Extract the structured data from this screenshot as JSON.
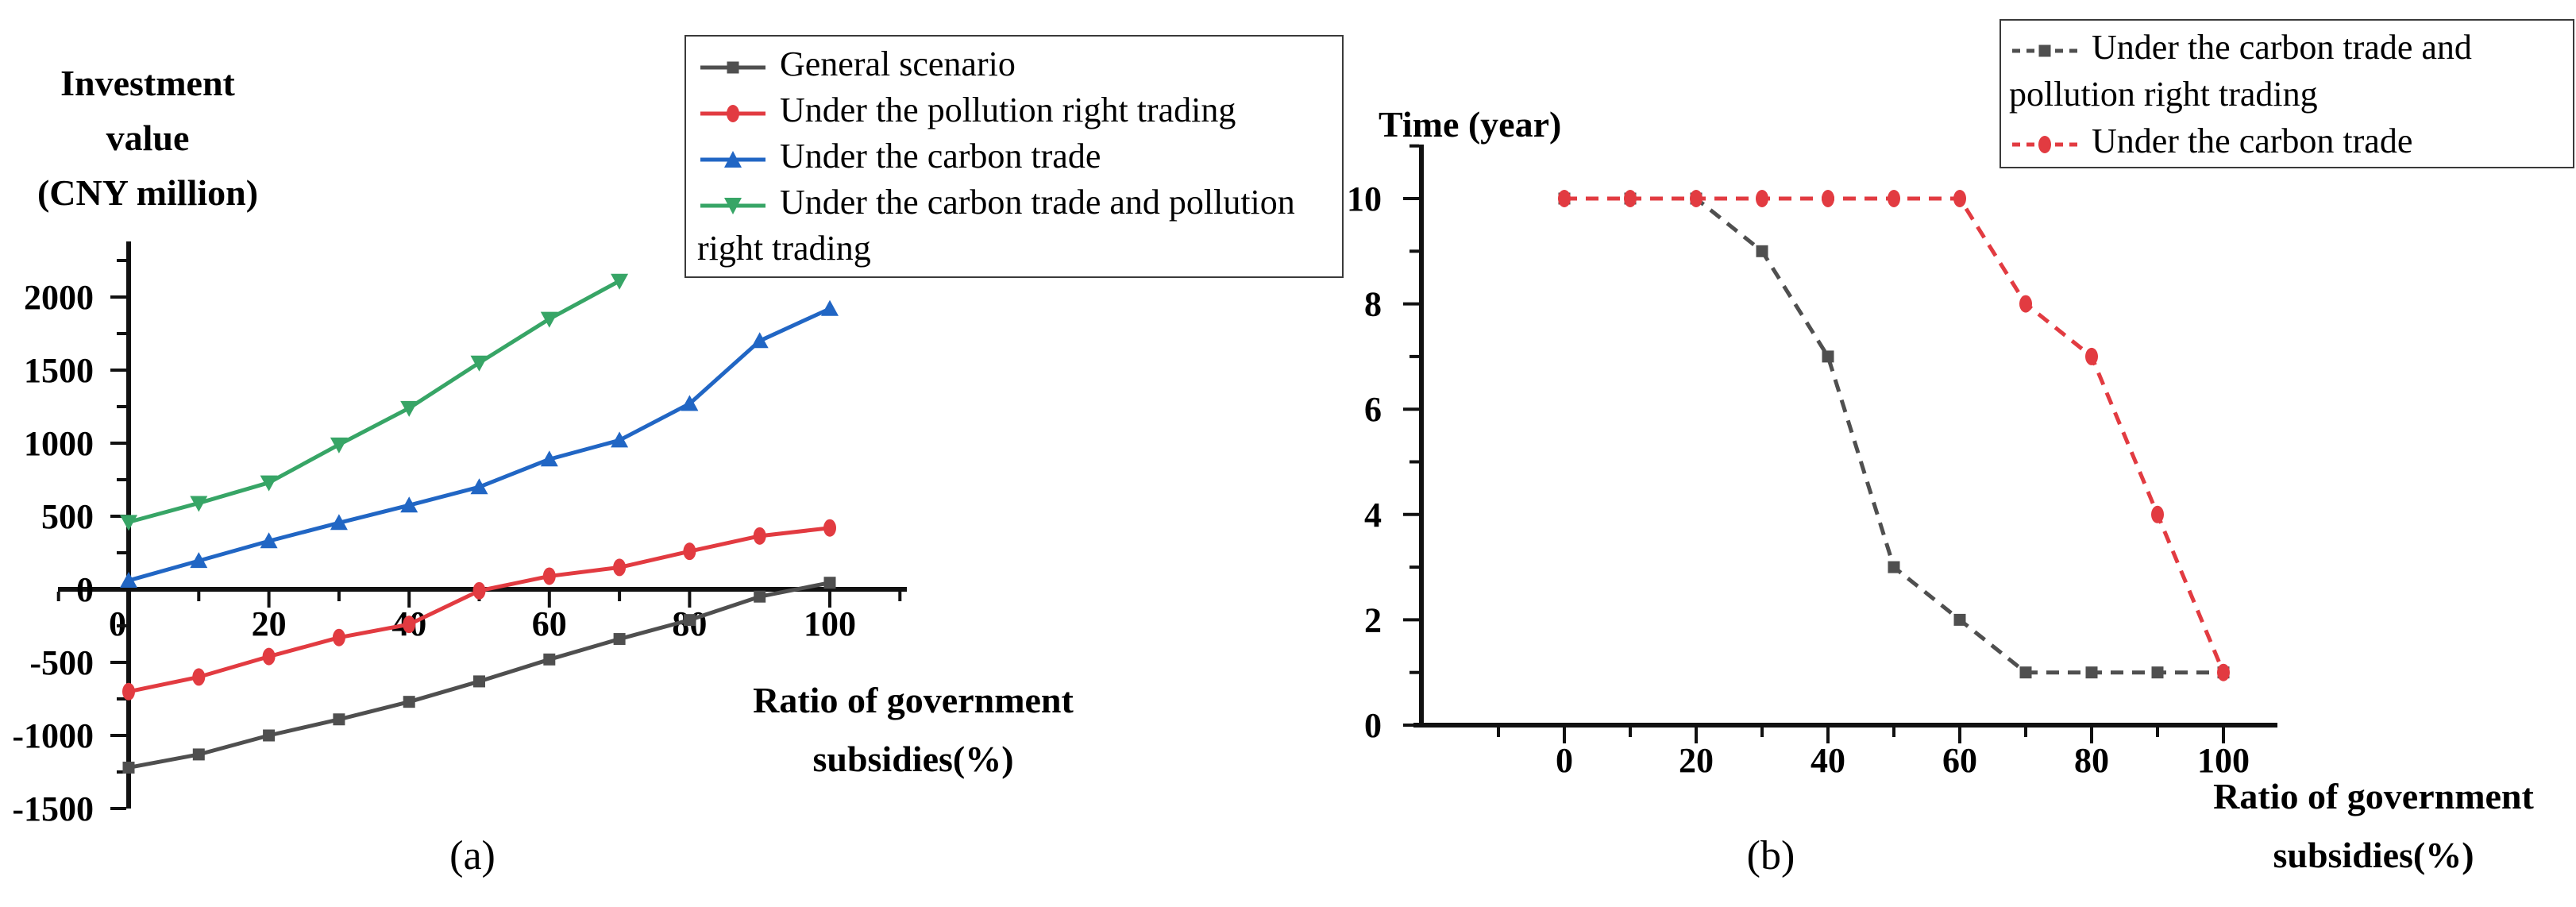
{
  "figure": {
    "background": "#ffffff"
  },
  "chart_data": [
    {
      "id": "a",
      "type": "line",
      "caption": "(a)",
      "ylabel": "Investment value (CNY million)",
      "xlabel": "Ratio of government subsidies(%)",
      "y_axis_title_lines": [
        "Investment value",
        "(CNY million)"
      ],
      "x_axis_title_lines": [
        "Ratio of government",
        "subsidies(%)"
      ],
      "x": [
        0,
        10,
        20,
        30,
        40,
        50,
        60,
        70,
        80,
        90,
        100
      ],
      "xlim": [
        -10,
        110
      ],
      "ylim": [
        -1750,
        2350
      ],
      "xticks": [
        0,
        20,
        40,
        60,
        80,
        100
      ],
      "yticks": [
        -1500,
        -1000,
        -500,
        0,
        500,
        1000,
        1500,
        2000
      ],
      "xticks_minor": [
        -10,
        10,
        30,
        50,
        70,
        90,
        110
      ],
      "yticks_minor": [
        -1250,
        -750,
        -250,
        250,
        750,
        1250,
        1750,
        2250
      ],
      "grid": false,
      "legend_position": "top-right",
      "series": [
        {
          "name": "General scenario",
          "color": "#4f4f4f",
          "marker": "square",
          "line_style": "solid",
          "x": [
            0,
            10,
            20,
            30,
            40,
            50,
            60,
            70,
            80,
            90,
            100
          ],
          "values": [
            -1220,
            -1130,
            -1000,
            -890,
            -770,
            -630,
            -480,
            -340,
            -210,
            -50,
            45
          ]
        },
        {
          "name": "Under the pollution right trading",
          "color": "#e23b41",
          "marker": "circle",
          "line_style": "solid",
          "x": [
            0,
            10,
            20,
            30,
            40,
            50,
            60,
            70,
            80,
            90,
            100
          ],
          "values": [
            -700,
            -600,
            -460,
            -330,
            -240,
            -10,
            90,
            150,
            260,
            365,
            420
          ]
        },
        {
          "name": "Under the carbon trade",
          "color": "#2166c4",
          "marker": "triangle-up",
          "line_style": "solid",
          "x": [
            0,
            10,
            20,
            30,
            40,
            50,
            60,
            70,
            80,
            90,
            100
          ],
          "values": [
            60,
            195,
            330,
            455,
            575,
            700,
            890,
            1020,
            1270,
            1700,
            1920
          ]
        },
        {
          "name": "Under the carbon trade and pollution right trading",
          "color": "#37a566",
          "marker": "triangle-down",
          "line_style": "solid",
          "x": [
            0,
            10,
            20,
            30,
            40,
            50,
            60,
            70
          ],
          "values": [
            460,
            590,
            730,
            990,
            1240,
            1550,
            1850,
            2110
          ]
        }
      ]
    },
    {
      "id": "b",
      "type": "line",
      "caption": "(b)",
      "ylabel": "Time (year)",
      "xlabel": "Ratio of government subsidies(%)",
      "y_axis_title": "Time (year)",
      "x_axis_title_lines": [
        "Ratio of government",
        "subsidies(%)"
      ],
      "x": [
        0,
        10,
        20,
        30,
        40,
        50,
        60,
        70,
        80,
        90,
        100
      ],
      "xlim": [
        -25,
        110
      ],
      "ylim": [
        0,
        11
      ],
      "xticks": [
        0,
        20,
        40,
        60,
        80,
        100
      ],
      "yticks": [
        0,
        2,
        4,
        6,
        8,
        10
      ],
      "xticks_minor": [
        -10,
        10,
        30,
        50,
        70,
        90
      ],
      "yticks_minor": [
        1,
        3,
        5,
        7,
        9,
        11
      ],
      "grid": false,
      "legend_position": "top-right",
      "series": [
        {
          "name": "Under the carbon trade and pollution right trading",
          "color": "#4f4f4f",
          "marker": "square",
          "line_style": "dashed",
          "x": [
            0,
            10,
            20,
            30,
            40,
            50,
            60,
            70,
            80,
            90,
            100
          ],
          "values": [
            10,
            10,
            10,
            9,
            7,
            3,
            2,
            1,
            1,
            1,
            1
          ]
        },
        {
          "name": "Under the carbon trade",
          "color": "#e23b41",
          "marker": "circle",
          "line_style": "dashed",
          "x": [
            0,
            10,
            20,
            30,
            40,
            50,
            60,
            70,
            80,
            90,
            100
          ],
          "values": [
            10,
            10,
            10,
            10,
            10,
            10,
            10,
            8,
            7,
            4,
            1
          ]
        }
      ]
    }
  ]
}
